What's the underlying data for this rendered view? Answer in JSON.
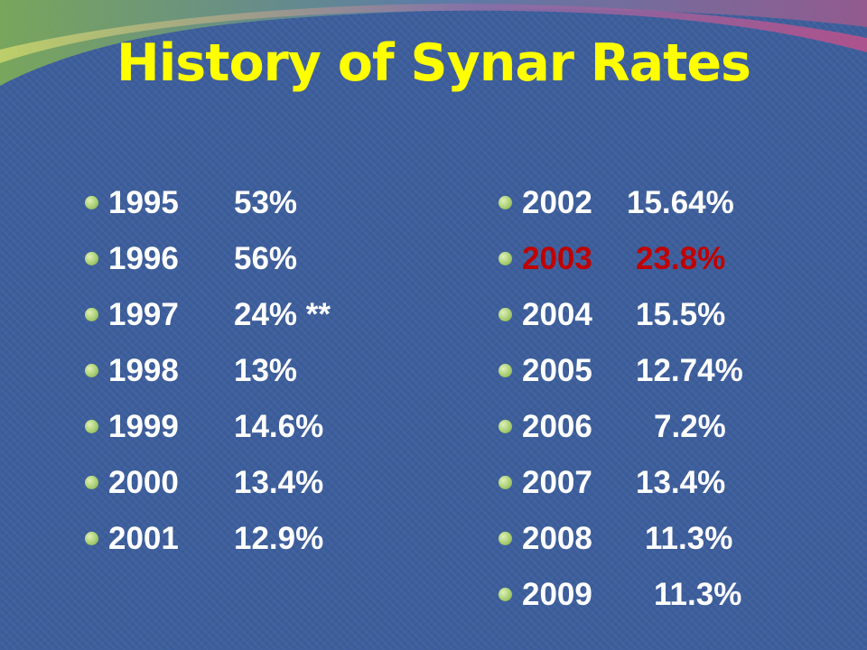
{
  "title": "History of Synar Rates",
  "colors": {
    "background": "#3d5e9c",
    "title": "#ffff00",
    "text": "#ffffff",
    "highlight": "#c00000",
    "bullet": "#a9cf72"
  },
  "left_column": [
    {
      "year": "1995",
      "rate": "53%"
    },
    {
      "year": "1996",
      "rate": "56%"
    },
    {
      "year": "1997",
      "rate": "24% **"
    },
    {
      "year": "1998",
      "rate": "13%"
    },
    {
      "year": "1999",
      "rate": "14.6%"
    },
    {
      "year": "2000",
      "rate": "13.4%"
    },
    {
      "year": "2001",
      "rate": "12.9%"
    }
  ],
  "right_column": [
    {
      "year": "2002",
      "rate": "15.64%"
    },
    {
      "year": "2003",
      "rate": "23.8%",
      "highlight": true
    },
    {
      "year": "2004",
      "rate": "15.5%"
    },
    {
      "year": "2005",
      "rate": "12.74%"
    },
    {
      "year": "2006",
      "rate": "7.2%"
    },
    {
      "year": "2007",
      "rate": "13.4%"
    },
    {
      "year": "2008",
      "rate": "11.3%"
    },
    {
      "year": "2009",
      "rate": "11.3%"
    }
  ]
}
